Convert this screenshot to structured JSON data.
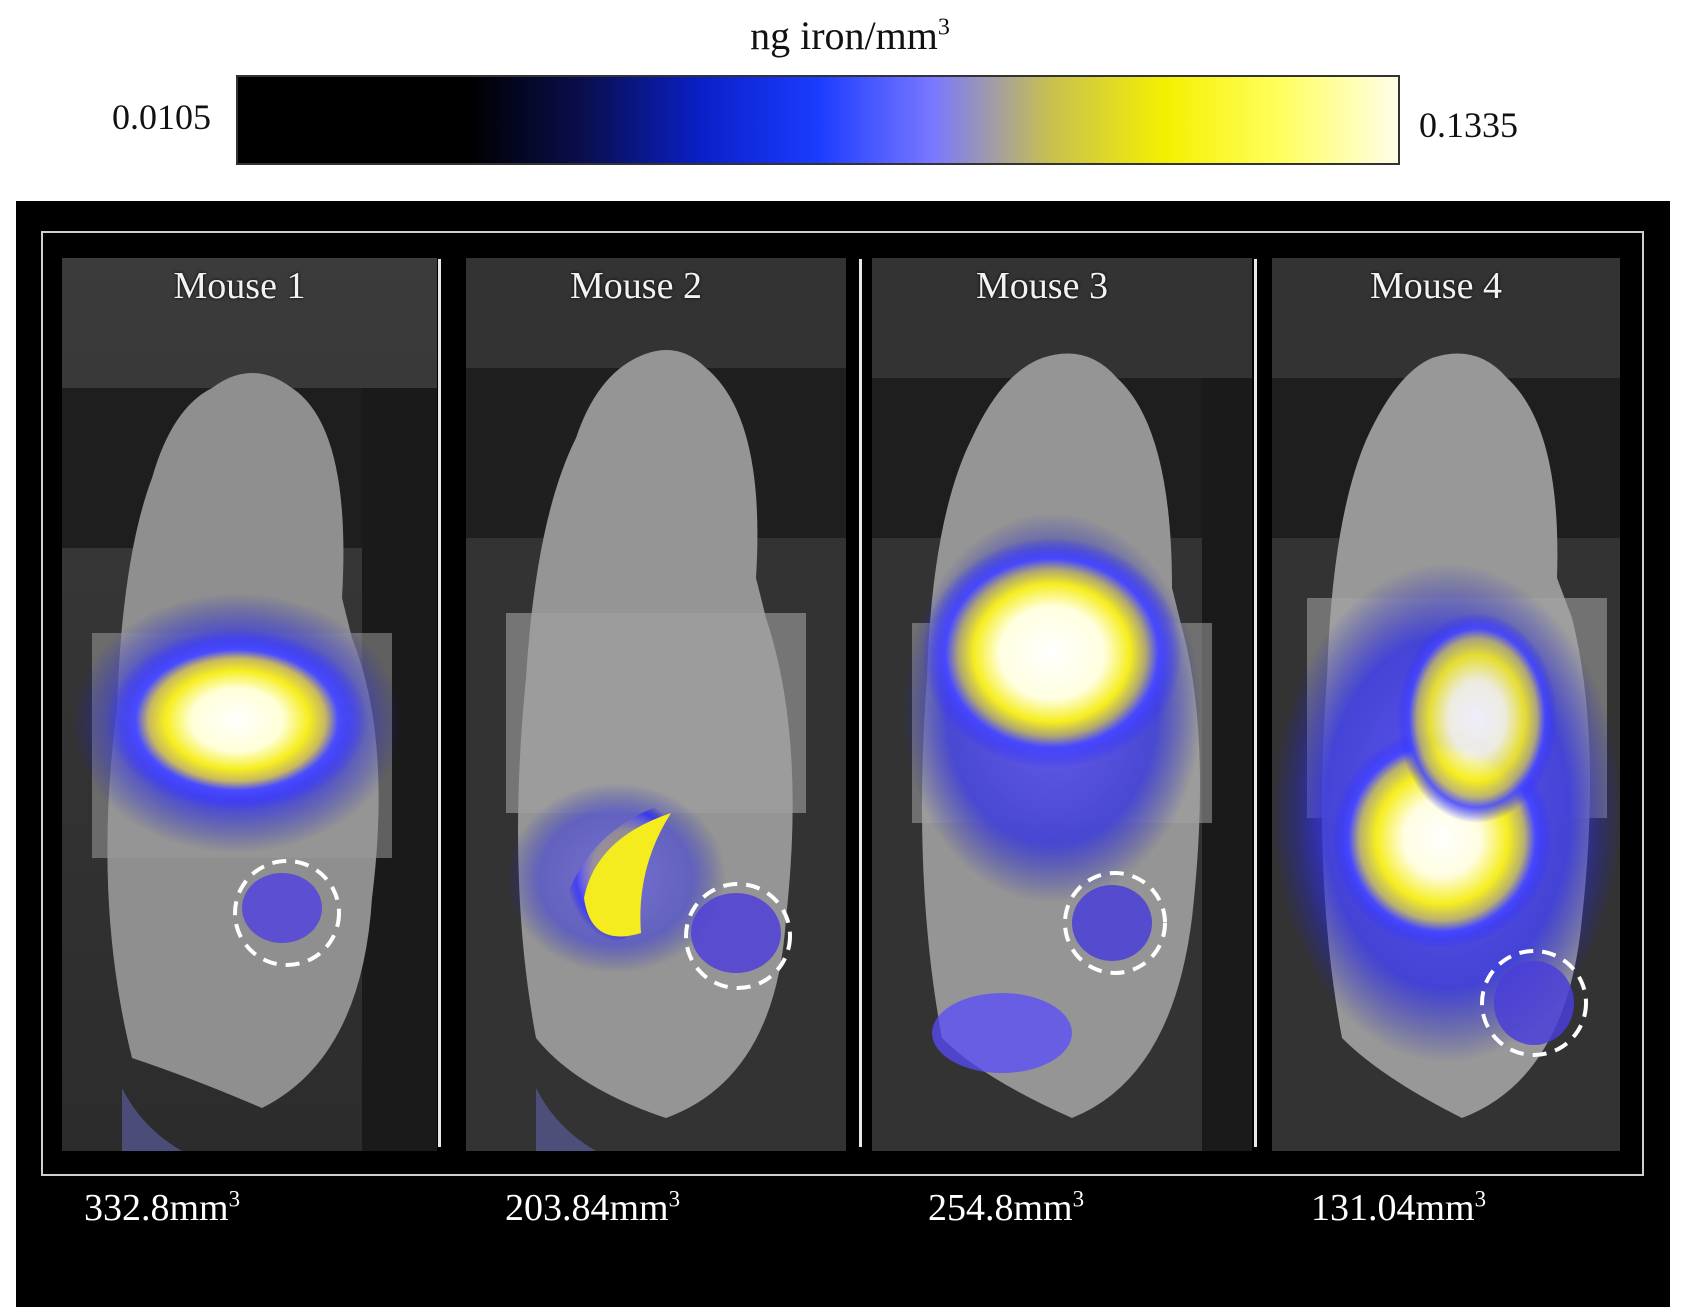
{
  "colorbar": {
    "title": "ng iron/mm",
    "title_sup": "3",
    "min": "0.0105",
    "max": "0.1335",
    "gradient_colors": [
      "#000000",
      "#000000",
      "#000000",
      "#0a0f50",
      "#0a20c8",
      "#1b3cff",
      "#7a78ff",
      "#c8c050",
      "#f5f000",
      "#ffff60",
      "#fffde8"
    ]
  },
  "mice": [
    {
      "label": "Mouse 1",
      "volume": "332.8mm",
      "volume_sup": "3"
    },
    {
      "label": "Mouse 2",
      "volume": "203.84mm",
      "volume_sup": "3"
    },
    {
      "label": "Mouse 3",
      "volume": "254.8mm",
      "volume_sup": "3"
    },
    {
      "label": "Mouse 4",
      "volume": "131.04mm",
      "volume_sup": "3"
    }
  ]
}
